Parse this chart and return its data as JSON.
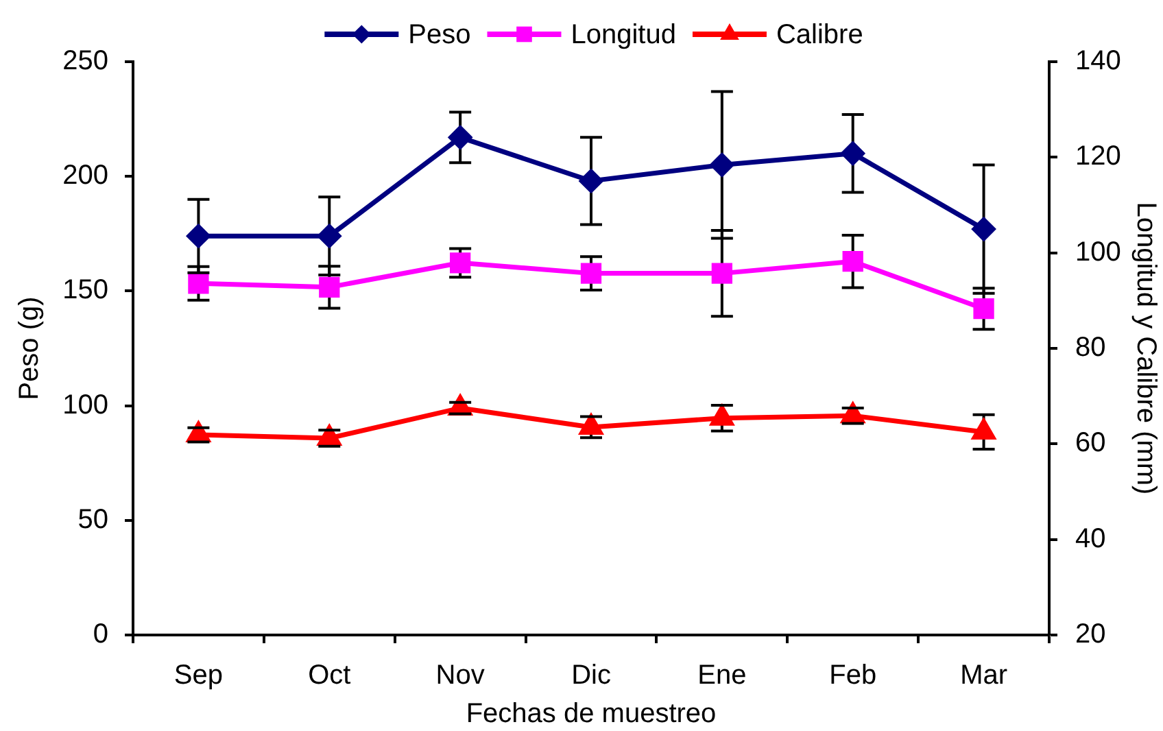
{
  "chart_data": {
    "type": "line",
    "xlabel": "Fechas de muestreo",
    "ylabel": "Peso (g)",
    "y2label": "Longitud y Calibre (mm)",
    "categories": [
      "Sep",
      "Oct",
      "Nov",
      "Dic",
      "Ene",
      "Feb",
      "Mar"
    ],
    "series": [
      {
        "name": "Peso",
        "color": "#000080",
        "marker": "diamond",
        "values": [
          174,
          174,
          217,
          198,
          205,
          210,
          177
        ],
        "errors": [
          16,
          17,
          11,
          19,
          32,
          17,
          28
        ]
      },
      {
        "name": "Longitud",
        "color": "#ff00ff",
        "marker": "square",
        "axis": "y2",
        "values": [
          93.6,
          92.8,
          97.9,
          95.7,
          95.7,
          98.2,
          88.3
        ],
        "errors": [
          3.5,
          4.4,
          3,
          3.5,
          9,
          5.5,
          4.3
        ]
      },
      {
        "name": "Calibre",
        "color": "#ff0000",
        "marker": "triangle",
        "axis": "y2",
        "values": [
          61.9,
          61.2,
          67.5,
          63.5,
          65.4,
          65.9,
          62.5
        ],
        "errors": [
          1.5,
          1.7,
          1.2,
          2.2,
          2.7,
          1.6,
          3.6
        ]
      }
    ],
    "ylim": [
      0,
      250
    ],
    "yticks": [
      0,
      50,
      100,
      150,
      200,
      250
    ],
    "y2lim": [
      20,
      140
    ],
    "y2ticks": [
      20,
      40,
      60,
      80,
      100,
      120,
      140
    ],
    "legend": "top",
    "grid": false,
    "line_style": "solid"
  }
}
